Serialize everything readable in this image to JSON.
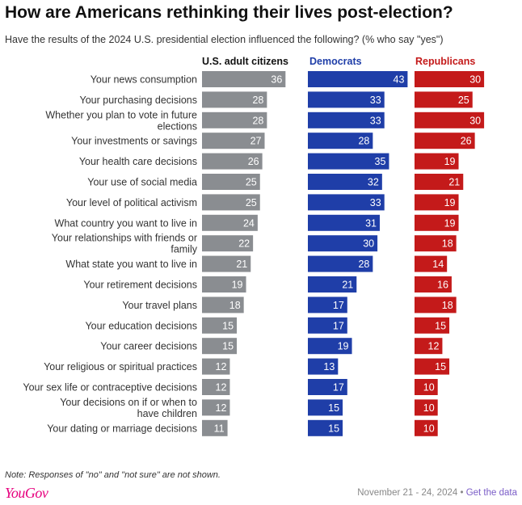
{
  "title": "How are Americans rethinking their lives post-election?",
  "subtitle": "Have the results of the 2024 U.S. presidential election influenced the following? (% who say \"yes\")",
  "note": "Note: Responses of \"no\" and \"not sure\" are not shown.",
  "logo": "YouGov",
  "footer": {
    "dates": "November 21 - 24, 2024",
    "separator": " • ",
    "link": "Get the data"
  },
  "colors": {
    "us_adults": "#8a8d91",
    "democrats": "#1f3ea8",
    "republicans": "#c41a1a",
    "dem_header": "#1f3ea8",
    "rep_header": "#c41a1a"
  },
  "chart_data": {
    "type": "bar",
    "orientation": "horizontal",
    "title": "How are Americans rethinking their lives post-election?",
    "categories": [
      "Your news consumption",
      "Your purchasing decisions",
      "Whether you plan to vote in future elections",
      "Your investments or savings",
      "Your health care decisions",
      "Your use of social media",
      "Your level of political activism",
      "What country you want to live in",
      "Your relationships with friends or family",
      "What state you want to live in",
      "Your retirement decisions",
      "Your travel plans",
      "Your education decisions",
      "Your career decisions",
      "Your religious or spiritual practices",
      "Your sex life or contraceptive decisions",
      "Your decisions on if or when to have children",
      "Your dating or marriage decisions"
    ],
    "series": [
      {
        "name": "U.S. adult citizens",
        "values": [
          36,
          28,
          28,
          27,
          26,
          25,
          25,
          24,
          22,
          21,
          19,
          18,
          15,
          15,
          12,
          12,
          12,
          11
        ]
      },
      {
        "name": "Democrats",
        "values": [
          43,
          33,
          33,
          28,
          35,
          32,
          33,
          31,
          30,
          28,
          21,
          17,
          17,
          19,
          13,
          17,
          15,
          15
        ]
      },
      {
        "name": "Republicans",
        "values": [
          30,
          25,
          30,
          26,
          19,
          21,
          19,
          19,
          18,
          14,
          16,
          18,
          15,
          12,
          15,
          10,
          10,
          10
        ]
      }
    ],
    "xlim": [
      0,
      43
    ],
    "data_labels": true,
    "grid": false,
    "legend": "column headers"
  }
}
